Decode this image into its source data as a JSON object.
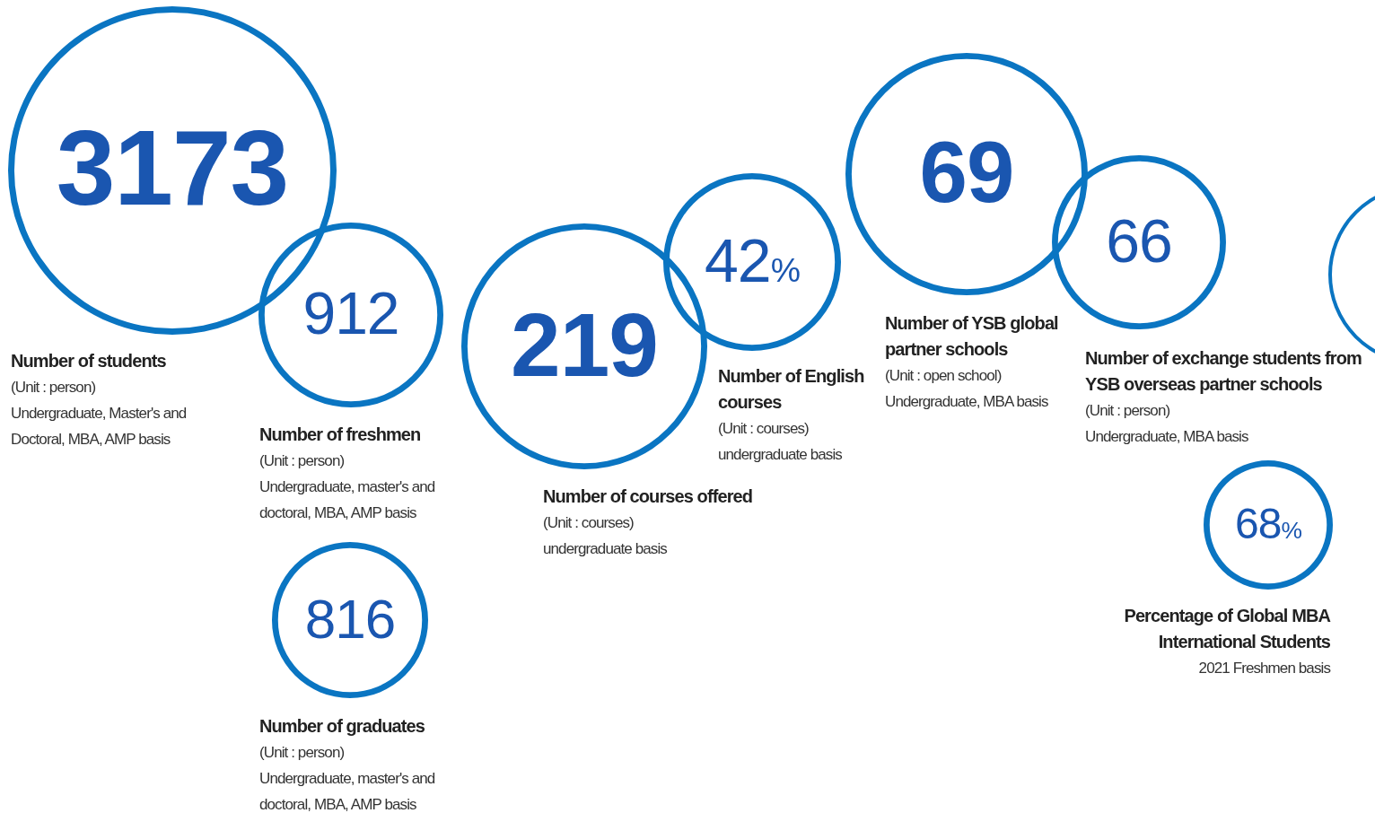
{
  "chart_data": [
    {
      "type": "other",
      "title": "Number of students",
      "subtitle": "(Unit : person)",
      "annotations": [
        "Undergraduate, Master's and Doctoral, MBA, AMP basis"
      ],
      "values": [
        3173
      ],
      "data_labels": true,
      "color": "#0a75c2"
    },
    {
      "type": "other",
      "title": "Number of freshmen",
      "subtitle": "(Unit : person)",
      "annotations": [
        "Undergraduate, master's and doctoral, MBA, AMP basis"
      ],
      "values": [
        912
      ],
      "data_labels": true,
      "color": "#0a75c2"
    },
    {
      "type": "other",
      "title": "Number of graduates",
      "subtitle": "(Unit : person)",
      "annotations": [
        "Undergraduate, master's and doctoral, MBA, AMP basis"
      ],
      "values": [
        816
      ],
      "data_labels": true,
      "color": "#0a75c2"
    },
    {
      "type": "other",
      "title": "Number of courses offered",
      "subtitle": "(Unit : courses)",
      "annotations": [
        "undergraduate basis"
      ],
      "values": [
        219
      ],
      "data_labels": true,
      "color": "#0a75c2"
    },
    {
      "type": "other",
      "title": "Number of English courses",
      "subtitle": "(Unit : courses)",
      "annotations": [
        "undergraduate basis"
      ],
      "values": [
        42
      ],
      "value_labels": [
        "42%"
      ],
      "color": "#0a75c2"
    },
    {
      "type": "other",
      "title": "Number of YSB global partner schools",
      "subtitle": "(Unit : open school)",
      "annotations": [
        "Undergraduate, MBA basis"
      ],
      "values": [
        69
      ],
      "data_labels": true,
      "color": "#0a75c2"
    },
    {
      "type": "other",
      "title": "Number of exchange students from YSB overseas partner schools",
      "subtitle": "(Unit : person)",
      "annotations": [
        "Undergraduate, MBA basis"
      ],
      "values": [
        66
      ],
      "data_labels": true,
      "color": "#0a75c2"
    },
    {
      "type": "other",
      "title": "Percentage of Global MBA International Students",
      "annotations": [
        "2021 Freshmen basis"
      ],
      "values": [
        68
      ],
      "value_labels": [
        "68%"
      ],
      "color": "#0a75c2"
    }
  ]
}
